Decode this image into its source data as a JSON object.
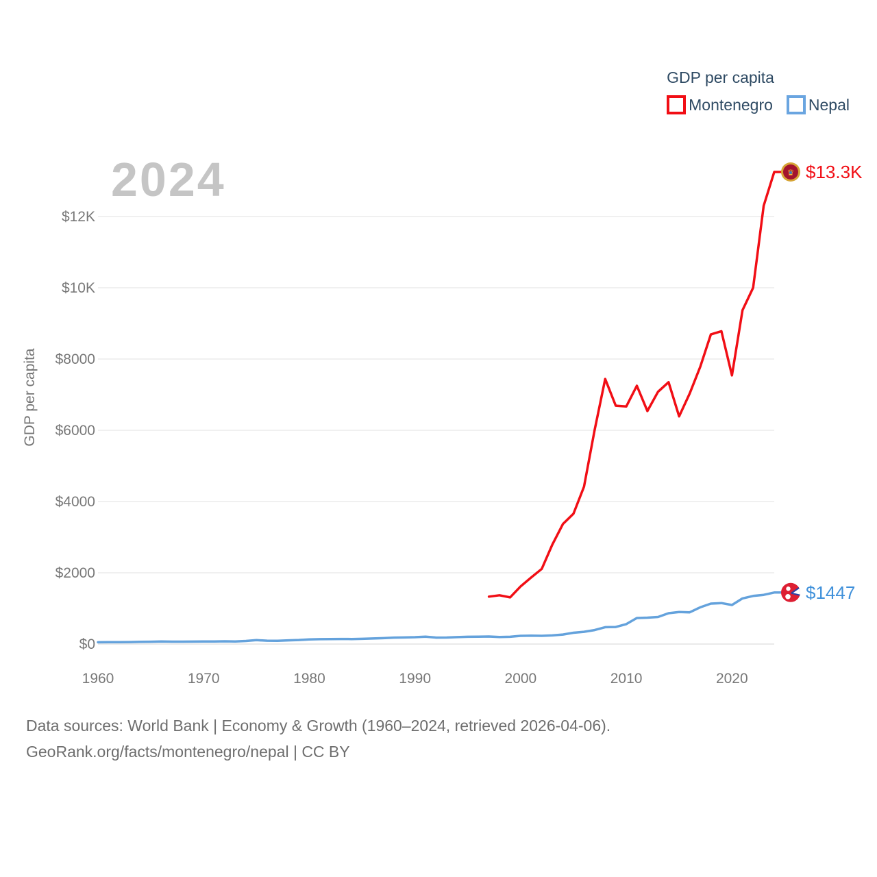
{
  "legend": {
    "title": "GDP per capita",
    "items": [
      {
        "label": "Montenegro",
        "color": "#f10e15"
      },
      {
        "label": "Nepal",
        "color": "#6aa5e0"
      }
    ]
  },
  "watermark": "2024",
  "chart_data": {
    "type": "line",
    "title": "",
    "xlabel": "",
    "ylabel": "GDP per capita",
    "xlim": [
      1960,
      2024
    ],
    "ylim": [
      0,
      13500
    ],
    "grid": "horizontal",
    "legend_position": "top-right",
    "x_ticks": [
      1960,
      1970,
      1980,
      1990,
      2000,
      2010,
      2020
    ],
    "y_ticks": [
      {
        "value": 0,
        "label": "$0"
      },
      {
        "value": 2000,
        "label": "$2000"
      },
      {
        "value": 4000,
        "label": "$4000"
      },
      {
        "value": 6000,
        "label": "$6000"
      },
      {
        "value": 8000,
        "label": "$8000"
      },
      {
        "value": 10000,
        "label": "$10K"
      },
      {
        "value": 12000,
        "label": "$12K"
      }
    ],
    "series": [
      {
        "name": "Montenegro",
        "color": "#f10e15",
        "label_color": "#f10e15",
        "flag": "montenegro",
        "start_year": 1997,
        "end_label": "$13.3K",
        "values": [
          1330,
          1370,
          1310,
          1620,
          1870,
          2110,
          2790,
          3370,
          3660,
          4420,
          6000,
          7440,
          6690,
          6670,
          7250,
          6540,
          7080,
          7350,
          6390,
          7030,
          7780,
          8690,
          8780,
          7540,
          9370,
          10000,
          12300,
          13250
        ]
      },
      {
        "name": "Nepal",
        "color": "#64a2dc",
        "label_color": "#3f90da",
        "flag": "nepal",
        "start_year": 1960,
        "end_label": "$1447",
        "values": [
          50,
          51,
          53,
          55,
          61,
          65,
          72,
          68,
          67,
          70,
          72,
          74,
          77,
          72,
          86,
          109,
          95,
          91,
          103,
          113,
          130,
          137,
          140,
          143,
          141,
          146,
          156,
          166,
          180,
          184,
          193,
          207,
          180,
          182,
          195,
          203,
          207,
          212,
          196,
          203,
          231,
          237,
          230,
          243,
          268,
          317,
          345,
          393,
          473,
          478,
          560,
          730,
          740,
          760,
          865,
          900,
          890,
          1030,
          1135,
          1150,
          1096,
          1280,
          1350,
          1380,
          1447
        ]
      }
    ]
  },
  "footer": {
    "line1": "Data sources: World Bank | Economy & Growth (1960–2024, retrieved 2026-04-06).",
    "line2": "GeoRank.org/facts/montenegro/nepal | CC BY"
  }
}
